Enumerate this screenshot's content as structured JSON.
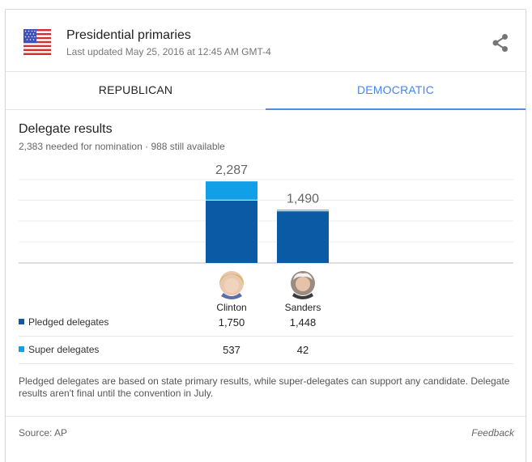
{
  "header": {
    "title": "Presidential primaries",
    "subtitle": "Last updated May 25, 2016 at 12:45 AM GMT-4",
    "flag_icon": "us-flag-icon",
    "share_icon": "share-icon"
  },
  "tabs": [
    {
      "label": "REPUBLICAN",
      "active": false
    },
    {
      "label": "DEMOCRATIC",
      "active": true
    }
  ],
  "section": {
    "title": "Delegate results",
    "subtitle": "2,383 needed for nomination · 988 still available"
  },
  "colors": {
    "pledged": "#0a5aa5",
    "super": "#0fa0e8",
    "active_tab": "#4285f4"
  },
  "chart_data": {
    "type": "bar",
    "stacked": true,
    "categories": [
      "Clinton",
      "Sanders"
    ],
    "series": [
      {
        "name": "Pledged delegates",
        "values": [
          1750,
          1448
        ]
      },
      {
        "name": "Super delegates",
        "values": [
          537,
          42
        ]
      }
    ],
    "totals": [
      "2,287",
      "1,490"
    ],
    "ylim": [
      0,
      2383
    ],
    "grid": true
  },
  "table": {
    "rows": [
      {
        "label": "Pledged delegates",
        "clinton": "1,750",
        "sanders": "1,448"
      },
      {
        "label": "Super delegates",
        "clinton": "537",
        "sanders": "42"
      }
    ]
  },
  "note": "Pledged delegates are based on state primary results, while super-delegates can support any candidate. Delegate results aren't final until the convention in July.",
  "footer": {
    "source": "Source: AP",
    "feedback": "Feedback"
  }
}
